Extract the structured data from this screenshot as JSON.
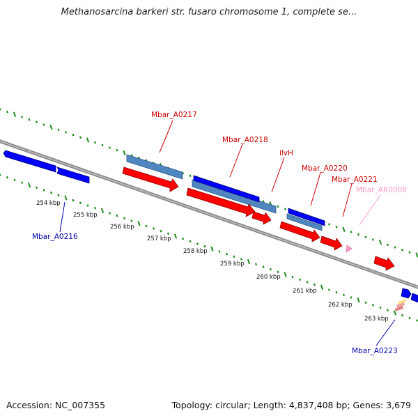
{
  "title": "Methanosarcina barkeri str. fusaro chromosome 1, complete se...",
  "footer": {
    "accession": "Accession: NC_007355",
    "summary": "Topology: circular; Length: 4,837,408 bp; Genes: 3,679"
  },
  "colors": {
    "backbone": "#8a8a8a",
    "tick": "#1a8c1a",
    "gene_red": "#ff0000",
    "gene_blue": "#0000ff",
    "gene_steel": "#4f86c0",
    "label_red": "#cc0000",
    "label_blue": "#0000aa",
    "label_pink": "#ff99cc"
  },
  "scale_labels": [
    "254 kbp",
    "255 kbp",
    "256 kbp",
    "257 kbp",
    "258 kbp",
    "259 kbp",
    "260 kbp",
    "261 kbp",
    "262 kbp",
    "263 kbp"
  ],
  "gene_labels": [
    {
      "name": "Mbar_A0216",
      "color": "blue"
    },
    {
      "name": "Mbar_A0217",
      "color": "red"
    },
    {
      "name": "Mbar_A0218",
      "color": "red"
    },
    {
      "name": "ilvH",
      "color": "red"
    },
    {
      "name": "Mbar_A0220",
      "color": "red"
    },
    {
      "name": "Mbar_A0221",
      "color": "red"
    },
    {
      "name": "Mbar_AR0008",
      "color": "pink"
    },
    {
      "name": "Mbar_A0223",
      "color": "blue"
    }
  ]
}
